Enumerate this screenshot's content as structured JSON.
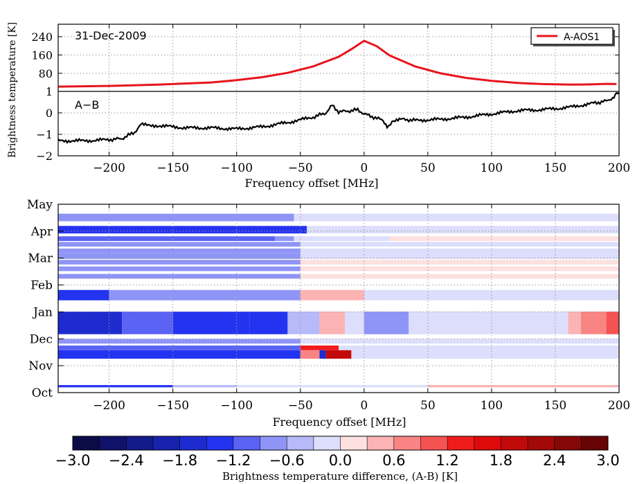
{
  "chart_data": [
    {
      "type": "line",
      "ylabel": "Brightness temperature [K]",
      "xlabel": "Frequency offset [MHz]",
      "xlim": [
        -240,
        200
      ],
      "x_ticks": [
        "−200",
        "−150",
        "−100",
        "−50",
        "0",
        "50",
        "100",
        "150",
        "200"
      ],
      "grid": true,
      "upper": {
        "date_label": "31-Dec-2009",
        "ylim": [
          1,
          270
        ],
        "y_ticks": [
          "240",
          "160",
          "80",
          "1"
        ],
        "legend": {
          "entries": [
            "A-AOS1"
          ],
          "placement": "top-right"
        },
        "series": [
          {
            "name": "A-AOS1",
            "color": "#e8141c",
            "x": [
              -240,
              -200,
              -160,
              -120,
              -100,
              -80,
              -60,
              -40,
              -20,
              -10,
              0,
              10,
              20,
              40,
              60,
              80,
              100,
              120,
              140,
              160,
              170,
              180,
              190,
              198
            ],
            "values": [
              22,
              25,
              31,
              40,
              50,
              63,
              82,
              110,
              152,
              185,
              222,
              198,
              158,
              110,
              80,
              60,
              47,
              38,
              33,
              31,
              31,
              32,
              34,
              33
            ]
          }
        ]
      },
      "lower": {
        "panel_label": "A−B",
        "ylim": [
          -2,
          1
        ],
        "y_ticks": [
          "1",
          "0",
          "−1",
          "−2"
        ],
        "series": [
          {
            "name": "",
            "color": "#000000",
            "x": [
              -240,
              -220,
              -200,
              -190,
              -180,
              -175,
              -160,
              -140,
              -120,
              -100,
              -80,
              -60,
              -40,
              -30,
              -25,
              -20,
              -10,
              -5,
              0,
              5,
              10,
              15,
              18,
              22,
              30,
              40,
              60,
              80,
              100,
              120,
              140,
              160,
              180,
              190,
              195,
              198,
              200
            ],
            "values": [
              -1.3,
              -1.3,
              -1.25,
              -1.2,
              -0.9,
              -0.55,
              -0.6,
              -0.7,
              -0.7,
              -0.75,
              -0.65,
              -0.45,
              -0.2,
              0.0,
              0.35,
              0.05,
              0.1,
              0.15,
              -0.05,
              -0.15,
              -0.25,
              -0.35,
              -0.7,
              -0.4,
              -0.3,
              -0.35,
              -0.3,
              -0.2,
              -0.05,
              0.1,
              0.15,
              0.25,
              0.45,
              0.55,
              0.7,
              0.95,
              0.95
            ]
          }
        ]
      }
    },
    {
      "type": "heatmap",
      "xlabel": "Frequency offset [MHz]",
      "xlim": [
        -240,
        200
      ],
      "x_ticks": [
        "−200",
        "−150",
        "−100",
        "−50",
        "0",
        "50",
        "100",
        "150",
        "200"
      ],
      "y_labels": [
        "May",
        "Apr",
        "Mar",
        "Feb",
        "Jan",
        "Dec",
        "Nov",
        "Oct"
      ],
      "colorbar": {
        "label": "Brightness temperature difference, (A-B) [K]",
        "range": [
          -3.0,
          3.0
        ],
        "step": 0.3,
        "ticks": [
          "−3.0",
          "−2.4",
          "−1.8",
          "−1.2",
          "−0.6",
          "0.0",
          "0.6",
          "1.2",
          "1.8",
          "2.4",
          "3.0"
        ],
        "colors": [
          "#0b0b48",
          "#0f1268",
          "#131b8a",
          "#1722ad",
          "#1e2ccf",
          "#2433f0",
          "#5a63f4",
          "#8f95f6",
          "#b6baf8",
          "#dcdefc",
          "#fde0e0",
          "#fbb3b3",
          "#f88484",
          "#f55252",
          "#f01c1c",
          "#dd0b0b",
          "#c30a0a",
          "#a40909",
          "#850707",
          "#660404"
        ]
      },
      "rows": [
        {
          "y": 0.5,
          "h": 0.4,
          "segs": [
            [
              -240,
              -55,
              -0.9
            ],
            [
              -55,
              200,
              -0.15
            ]
          ]
        },
        {
          "y": 1.15,
          "h": 0.4,
          "segs": [
            [
              -240,
              -45,
              -1.3
            ],
            [
              -45,
              200,
              -0.15
            ]
          ]
        },
        {
          "y": 1.7,
          "h": 0.25,
          "segs": [
            [
              -240,
              -70,
              -1.1
            ],
            [
              -70,
              -55,
              -0.8
            ],
            [
              -55,
              20,
              -0.2
            ],
            [
              20,
              200,
              0.15
            ]
          ]
        },
        {
          "y": 2.0,
          "h": 0.25,
          "segs": [
            [
              -240,
              -50,
              -0.9
            ],
            [
              -50,
              200,
              -0.15
            ]
          ]
        },
        {
          "y": 2.35,
          "h": 0.25,
          "segs": [
            [
              -240,
              -50,
              -0.9
            ],
            [
              -50,
              200,
              -0.15
            ]
          ]
        },
        {
          "y": 2.6,
          "h": 0.3,
          "segs": [
            [
              -240,
              -50,
              -0.9
            ],
            [
              -50,
              200,
              -0.1
            ]
          ]
        },
        {
          "y": 2.95,
          "h": 0.25,
          "segs": [
            [
              -240,
              -50,
              -0.9
            ],
            [
              -50,
              200,
              0.15
            ]
          ]
        },
        {
          "y": 3.3,
          "h": 0.25,
          "segs": [
            [
              -240,
              -50,
              -0.9
            ],
            [
              -50,
              200,
              0.15
            ]
          ]
        },
        {
          "y": 3.7,
          "h": 0.25,
          "segs": [
            [
              -240,
              -50,
              -0.9
            ],
            [
              -50,
              200,
              0.2
            ]
          ]
        },
        {
          "y": 4.55,
          "h": 0.55,
          "segs": [
            [
              -240,
              -200,
              -1.5
            ],
            [
              -200,
              -50,
              -0.8
            ],
            [
              -50,
              -30,
              0.4
            ],
            [
              -30,
              0,
              0.5
            ],
            [
              0,
              200,
              -0.1
            ]
          ]
        },
        {
          "y": 5.7,
          "h": 1.2,
          "segs": [
            [
              -240,
              -190,
              -1.6
            ],
            [
              -190,
              -150,
              -1.0
            ],
            [
              -150,
              -90,
              -1.5
            ],
            [
              -90,
              -60,
              -1.4
            ],
            [
              -60,
              -35,
              -0.6
            ],
            [
              -35,
              -15,
              0.5
            ],
            [
              -15,
              0,
              -0.2
            ],
            [
              0,
              35,
              -0.7
            ],
            [
              35,
              90,
              -0.3
            ],
            [
              90,
              160,
              -0.15
            ],
            [
              160,
              170,
              0.4
            ],
            [
              170,
              190,
              0.6
            ],
            [
              190,
              200,
              1.0
            ]
          ]
        },
        {
          "y": 7.15,
          "h": 0.25,
          "segs": [
            [
              -240,
              -50,
              -0.9
            ],
            [
              -50,
              200,
              -0.1
            ]
          ]
        },
        {
          "y": 7.5,
          "h": 0.25,
          "segs": [
            [
              -240,
              -50,
              -1.1
            ],
            [
              -50,
              -20,
              1.4
            ],
            [
              -20,
              200,
              -0.1
            ]
          ]
        },
        {
          "y": 7.75,
          "h": 0.45,
          "segs": [
            [
              -240,
              -50,
              -1.3
            ],
            [
              -50,
              -35,
              0.7
            ],
            [
              -35,
              -30,
              -1.8
            ],
            [
              -30,
              -10,
              2.0
            ],
            [
              -10,
              200,
              -0.1
            ]
          ]
        },
        {
          "y": 9.6,
          "h": 0.12,
          "segs": [
            [
              -240,
              -150,
              -1.3
            ],
            [
              -150,
              -100,
              -0.6
            ],
            [
              -100,
              50,
              -0.1
            ],
            [
              50,
              200,
              0.3
            ]
          ]
        }
      ]
    }
  ]
}
